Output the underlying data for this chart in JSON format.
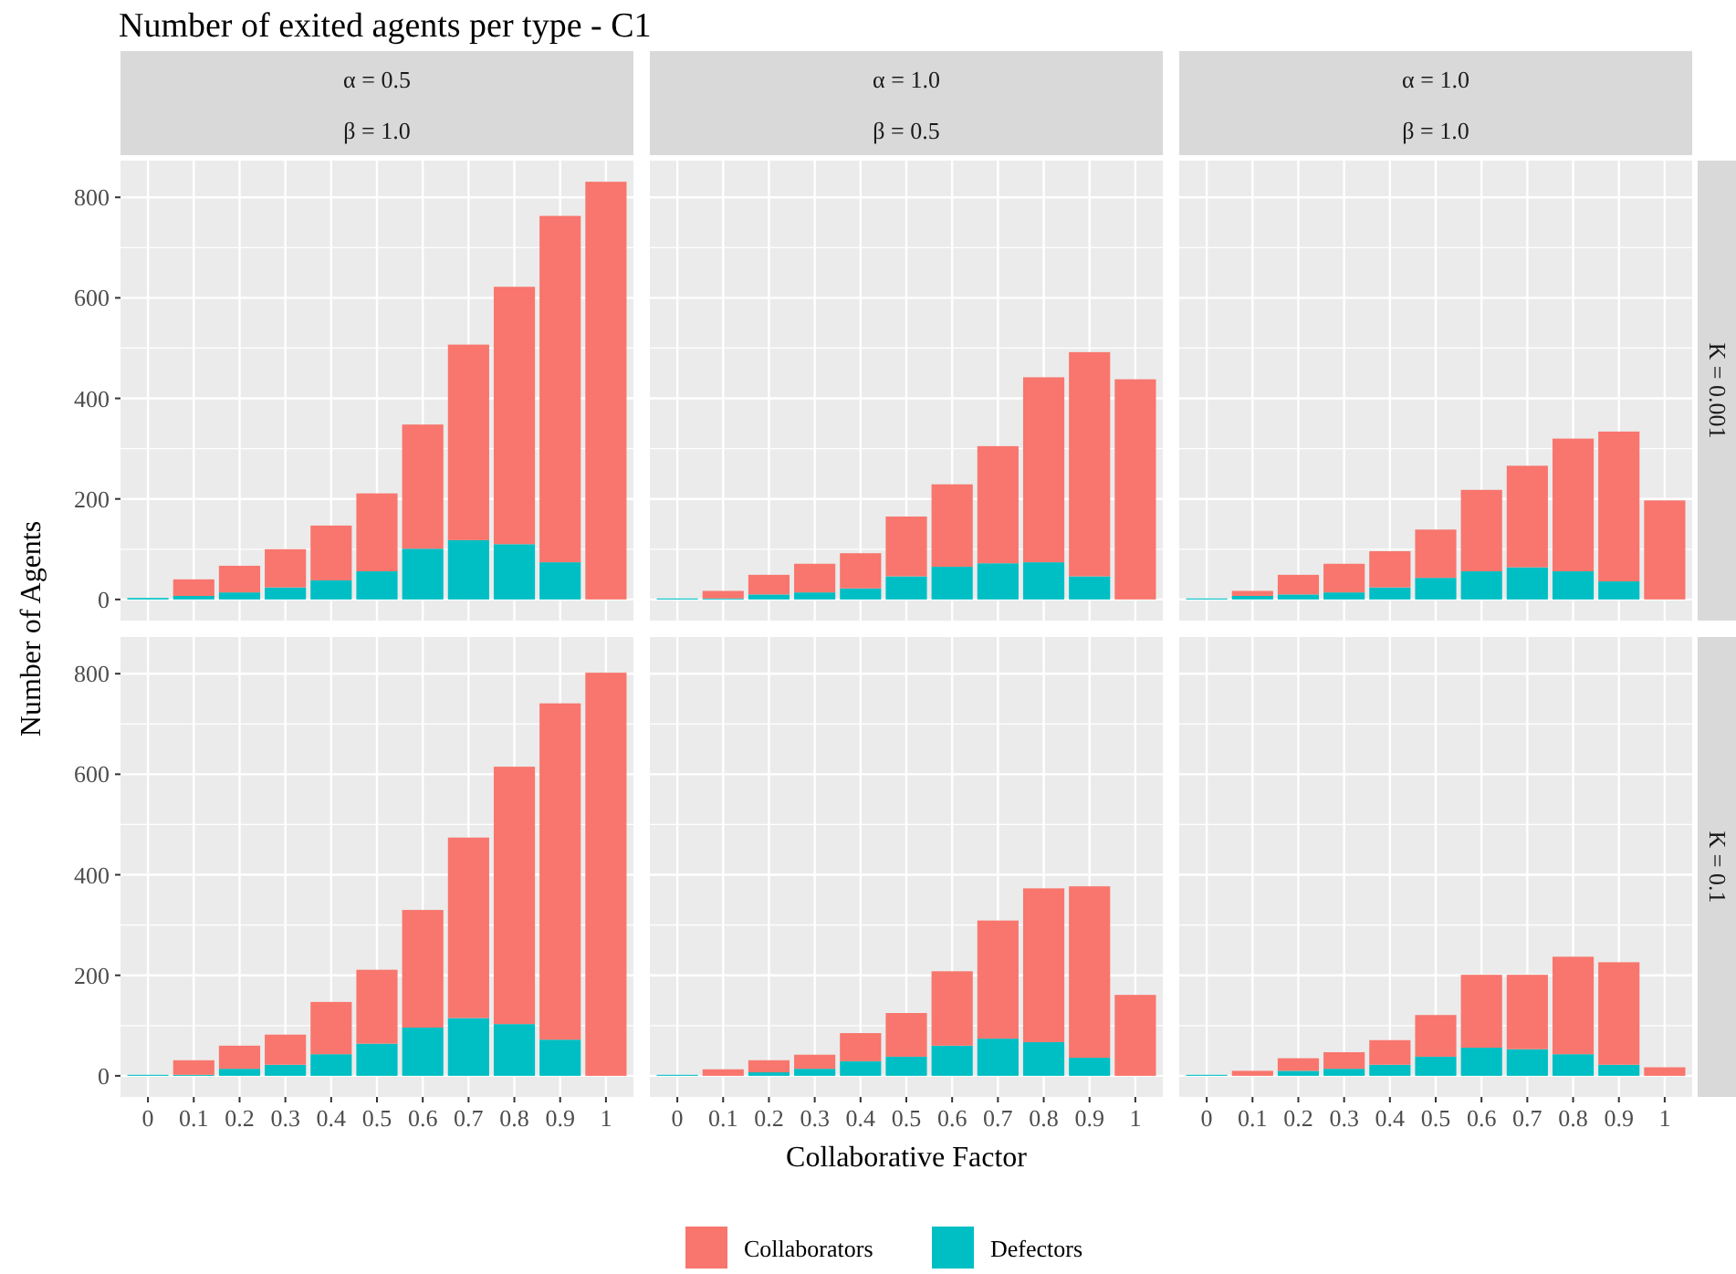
{
  "chart_data": [
    {
      "type": "bar",
      "title": "Number of exited agents per type - C1",
      "ylabel": "Number of Agents",
      "annotations": [
        "α = 0.5",
        "β = 1.0"
      ],
      "stacked": true,
      "categories": [
        "0",
        "0.1",
        "0.2",
        "0.3",
        "0.4",
        "0.5",
        "0.6",
        "0.7",
        "0.8",
        "0.9",
        "1"
      ],
      "ylim": [
        -42,
        873
      ],
      "yticks": [
        0,
        200,
        400,
        600,
        800
      ],
      "grid": true,
      "tick_labels": "y",
      "legend": "bottom",
      "series": [
        {
          "name": "Defectors",
          "color": "#00bfc4",
          "values": [
            3,
            7,
            14,
            24,
            38,
            56,
            101,
            118,
            110,
            74,
            0
          ]
        },
        {
          "name": "Collaborators",
          "color": "#f8766d",
          "values": [
            0,
            33,
            53,
            76,
            109,
            155,
            247,
            389,
            512,
            689,
            831
          ]
        }
      ]
    },
    {
      "type": "bar",
      "annotations": [
        "α = 1.0",
        "β = 0.5"
      ],
      "stacked": true,
      "categories": [
        "0",
        "0.1",
        "0.2",
        "0.3",
        "0.4",
        "0.5",
        "0.6",
        "0.7",
        "0.8",
        "0.9",
        "1"
      ],
      "ylim": [
        -42,
        873
      ],
      "yticks": [
        0,
        200,
        400,
        600,
        800
      ],
      "grid": true,
      "tick_labels": false,
      "series": [
        {
          "color": "#00bfc4",
          "values": [
            2,
            2,
            10,
            14,
            22,
            46,
            65,
            72,
            74,
            46,
            0
          ]
        },
        {
          "color": "#f8766d",
          "values": [
            0,
            15,
            39,
            57,
            70,
            119,
            164,
            233,
            368,
            446,
            438
          ]
        }
      ]
    },
    {
      "type": "bar",
      "annotations": [
        "α = 1.0",
        "β = 1.0",
        "K = 0.001"
      ],
      "stacked": true,
      "categories": [
        "0",
        "0.1",
        "0.2",
        "0.3",
        "0.4",
        "0.5",
        "0.6",
        "0.7",
        "0.8",
        "0.9",
        "1"
      ],
      "ylim": [
        -42,
        873
      ],
      "yticks": [
        0,
        200,
        400,
        600,
        800
      ],
      "grid": true,
      "tick_labels": false,
      "series": [
        {
          "color": "#00bfc4",
          "values": [
            2,
            7,
            10,
            14,
            24,
            43,
            56,
            64,
            56,
            36,
            0
          ]
        },
        {
          "color": "#f8766d",
          "values": [
            0,
            10,
            39,
            57,
            72,
            96,
            162,
            202,
            264,
            298,
            197
          ]
        }
      ]
    },
    {
      "type": "bar",
      "stacked": true,
      "categories": [
        "0",
        "0.1",
        "0.2",
        "0.3",
        "0.4",
        "0.5",
        "0.6",
        "0.7",
        "0.8",
        "0.9",
        "1"
      ],
      "ylim": [
        -42,
        873
      ],
      "yticks": [
        0,
        200,
        400,
        600,
        800
      ],
      "grid": true,
      "series": [
        {
          "color": "#00bfc4",
          "values": [
            2,
            2,
            14,
            22,
            43,
            64,
            96,
            115,
            103,
            72,
            0
          ]
        },
        {
          "color": "#f8766d",
          "values": [
            0,
            29,
            46,
            60,
            104,
            147,
            234,
            359,
            512,
            669,
            802
          ]
        }
      ]
    },
    {
      "type": "bar",
      "xlabel": "Collaborative Factor",
      "stacked": true,
      "categories": [
        "0",
        "0.1",
        "0.2",
        "0.3",
        "0.4",
        "0.5",
        "0.6",
        "0.7",
        "0.8",
        "0.9",
        "1"
      ],
      "ylim": [
        -42,
        873
      ],
      "yticks": [
        0,
        200,
        400,
        600,
        800
      ],
      "grid": true,
      "tick_labels": "x",
      "series": [
        {
          "color": "#00bfc4",
          "values": [
            2,
            0,
            7,
            14,
            29,
            38,
            60,
            74,
            67,
            36,
            0
          ]
        },
        {
          "color": "#f8766d",
          "values": [
            0,
            13,
            24,
            28,
            56,
            87,
            148,
            235,
            306,
            341,
            161
          ]
        }
      ]
    },
    {
      "type": "bar",
      "annotations": [
        "K = 0.1"
      ],
      "stacked": true,
      "categories": [
        "0",
        "0.1",
        "0.2",
        "0.3",
        "0.4",
        "0.5",
        "0.6",
        "0.7",
        "0.8",
        "0.9",
        "1"
      ],
      "ylim": [
        -42,
        873
      ],
      "yticks": [
        0,
        200,
        400,
        600,
        800
      ],
      "grid": true,
      "tick_labels": "x",
      "series": [
        {
          "color": "#00bfc4",
          "values": [
            2,
            0,
            10,
            14,
            22,
            38,
            56,
            53,
            43,
            22,
            0
          ]
        },
        {
          "color": "#f8766d",
          "values": [
            0,
            10,
            25,
            33,
            49,
            83,
            145,
            148,
            194,
            204,
            17
          ]
        }
      ]
    }
  ]
}
